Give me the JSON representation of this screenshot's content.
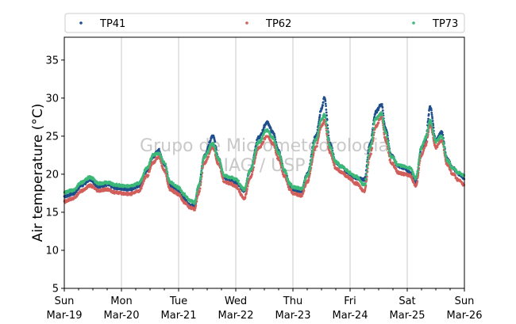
{
  "chart_data": {
    "type": "scatter",
    "title": "",
    "xlabel": "",
    "ylabel": "Air temperature (°C)",
    "ylim": [
      5,
      38
    ],
    "xlim": [
      0,
      7
    ],
    "grid": "vertical",
    "legend_placement": "top, above plot",
    "watermark": [
      "Grupo de Micrometeorologia",
      "IAG / USP"
    ],
    "yticks": [
      "5",
      "10",
      "15",
      "20",
      "25",
      "30",
      "35"
    ],
    "xticks": [
      {
        "day": "Sun",
        "date": "Mar-19"
      },
      {
        "day": "Mon",
        "date": "Mar-20"
      },
      {
        "day": "Tue",
        "date": "Mar-21"
      },
      {
        "day": "Wed",
        "date": "Mar-22"
      },
      {
        "day": "Thu",
        "date": "Mar-23"
      },
      {
        "day": "Fri",
        "date": "Mar-24"
      },
      {
        "day": "Sat",
        "date": "Mar-25"
      },
      {
        "day": "Sun",
        "date": "Mar-26"
      }
    ],
    "series": [
      {
        "name": "TP41",
        "color": "#1f4e8c",
        "points": [
          [
            0.0,
            17.1
          ],
          [
            0.15,
            17.4
          ],
          [
            0.3,
            18.5
          ],
          [
            0.45,
            19.3
          ],
          [
            0.6,
            18.4
          ],
          [
            0.75,
            18.6
          ],
          [
            0.9,
            18.2
          ],
          [
            1.0,
            18.1
          ],
          [
            1.15,
            18.0
          ],
          [
            1.3,
            18.4
          ],
          [
            1.45,
            20.5
          ],
          [
            1.55,
            22.3
          ],
          [
            1.65,
            23.2
          ],
          [
            1.75,
            21.3
          ],
          [
            1.85,
            18.6
          ],
          [
            1.95,
            18.1
          ],
          [
            2.0,
            17.8
          ],
          [
            2.1,
            16.8
          ],
          [
            2.2,
            15.9
          ],
          [
            2.28,
            15.8
          ],
          [
            2.35,
            18.3
          ],
          [
            2.45,
            22.5
          ],
          [
            2.6,
            25.0
          ],
          [
            2.7,
            22.0
          ],
          [
            2.8,
            19.5
          ],
          [
            2.9,
            19.3
          ],
          [
            3.0,
            18.9
          ],
          [
            3.15,
            17.8
          ],
          [
            3.25,
            20.5
          ],
          [
            3.4,
            24.8
          ],
          [
            3.55,
            26.8
          ],
          [
            3.65,
            25.5
          ],
          [
            3.75,
            23.0
          ],
          [
            3.85,
            20.5
          ],
          [
            3.95,
            18.5
          ],
          [
            4.0,
            18.0
          ],
          [
            4.15,
            17.8
          ],
          [
            4.25,
            20.0
          ],
          [
            4.4,
            25.0
          ],
          [
            4.5,
            28.5
          ],
          [
            4.55,
            30.0
          ],
          [
            4.65,
            24.0
          ],
          [
            4.75,
            21.5
          ],
          [
            4.85,
            21.0
          ],
          [
            4.95,
            20.3
          ],
          [
            5.0,
            20.0
          ],
          [
            5.1,
            19.5
          ],
          [
            5.25,
            19.3
          ],
          [
            5.35,
            24.0
          ],
          [
            5.45,
            28.2
          ],
          [
            5.55,
            29.2
          ],
          [
            5.62,
            26.0
          ],
          [
            5.72,
            22.5
          ],
          [
            5.85,
            21.0
          ],
          [
            5.95,
            20.8
          ],
          [
            6.05,
            20.2
          ],
          [
            6.15,
            18.8
          ],
          [
            6.25,
            23.5
          ],
          [
            6.32,
            24.5
          ],
          [
            6.4,
            28.8
          ],
          [
            6.5,
            24.5
          ],
          [
            6.6,
            25.5
          ],
          [
            6.7,
            22.0
          ],
          [
            6.8,
            20.8
          ],
          [
            6.9,
            20.0
          ],
          [
            7.0,
            19.5
          ]
        ]
      },
      {
        "name": "TP62",
        "color": "#d15f5b",
        "points": [
          [
            0.0,
            16.4
          ],
          [
            0.15,
            16.8
          ],
          [
            0.3,
            17.8
          ],
          [
            0.45,
            18.5
          ],
          [
            0.6,
            17.8
          ],
          [
            0.75,
            18.0
          ],
          [
            0.9,
            17.6
          ],
          [
            1.0,
            17.5
          ],
          [
            1.15,
            17.4
          ],
          [
            1.3,
            17.8
          ],
          [
            1.45,
            19.8
          ],
          [
            1.55,
            21.5
          ],
          [
            1.65,
            22.3
          ],
          [
            1.75,
            20.5
          ],
          [
            1.85,
            18.0
          ],
          [
            1.95,
            17.6
          ],
          [
            2.0,
            17.3
          ],
          [
            2.1,
            16.3
          ],
          [
            2.2,
            15.6
          ],
          [
            2.28,
            15.4
          ],
          [
            2.35,
            17.5
          ],
          [
            2.45,
            21.5
          ],
          [
            2.6,
            23.5
          ],
          [
            2.7,
            21.3
          ],
          [
            2.8,
            19.0
          ],
          [
            2.9,
            18.8
          ],
          [
            3.0,
            18.4
          ],
          [
            3.15,
            16.8
          ],
          [
            3.25,
            19.5
          ],
          [
            3.4,
            23.5
          ],
          [
            3.55,
            25.0
          ],
          [
            3.65,
            24.0
          ],
          [
            3.75,
            22.0
          ],
          [
            3.85,
            19.8
          ],
          [
            3.95,
            18.0
          ],
          [
            4.0,
            17.5
          ],
          [
            4.15,
            17.2
          ],
          [
            4.25,
            19.0
          ],
          [
            4.4,
            23.5
          ],
          [
            4.5,
            26.3
          ],
          [
            4.55,
            27.0
          ],
          [
            4.65,
            22.8
          ],
          [
            4.75,
            20.8
          ],
          [
            4.85,
            20.3
          ],
          [
            4.95,
            19.7
          ],
          [
            5.0,
            19.4
          ],
          [
            5.1,
            18.8
          ],
          [
            5.25,
            17.8
          ],
          [
            5.35,
            22.5
          ],
          [
            5.45,
            26.3
          ],
          [
            5.55,
            27.5
          ],
          [
            5.62,
            24.5
          ],
          [
            5.72,
            21.5
          ],
          [
            5.85,
            20.2
          ],
          [
            5.95,
            20.0
          ],
          [
            6.05,
            19.8
          ],
          [
            6.15,
            18.5
          ],
          [
            6.25,
            22.5
          ],
          [
            6.32,
            23.8
          ],
          [
            6.4,
            26.5
          ],
          [
            6.5,
            23.5
          ],
          [
            6.6,
            24.5
          ],
          [
            6.7,
            21.2
          ],
          [
            6.8,
            20.0
          ],
          [
            6.9,
            19.2
          ],
          [
            7.0,
            18.6
          ]
        ]
      },
      {
        "name": "TP73",
        "color": "#3cb878",
        "points": [
          [
            0.0,
            17.6
          ],
          [
            0.15,
            17.9
          ],
          [
            0.3,
            18.9
          ],
          [
            0.45,
            19.6
          ],
          [
            0.6,
            18.8
          ],
          [
            0.75,
            18.9
          ],
          [
            0.9,
            18.6
          ],
          [
            1.0,
            18.5
          ],
          [
            1.15,
            18.4
          ],
          [
            1.3,
            18.8
          ],
          [
            1.45,
            20.8
          ],
          [
            1.55,
            22.5
          ],
          [
            1.65,
            22.8
          ],
          [
            1.75,
            21.5
          ],
          [
            1.85,
            19.0
          ],
          [
            1.95,
            18.5
          ],
          [
            2.0,
            18.2
          ],
          [
            2.1,
            17.3
          ],
          [
            2.2,
            16.5
          ],
          [
            2.28,
            16.3
          ],
          [
            2.35,
            18.5
          ],
          [
            2.45,
            22.3
          ],
          [
            2.6,
            24.0
          ],
          [
            2.7,
            22.0
          ],
          [
            2.8,
            19.8
          ],
          [
            2.9,
            19.6
          ],
          [
            3.0,
            19.3
          ],
          [
            3.15,
            18.0
          ],
          [
            3.25,
            20.5
          ],
          [
            3.4,
            24.2
          ],
          [
            3.55,
            25.8
          ],
          [
            3.65,
            24.8
          ],
          [
            3.75,
            22.8
          ],
          [
            3.85,
            20.5
          ],
          [
            3.95,
            18.7
          ],
          [
            4.0,
            18.3
          ],
          [
            4.15,
            18.1
          ],
          [
            4.25,
            19.8
          ],
          [
            4.4,
            24.5
          ],
          [
            4.5,
            27.2
          ],
          [
            4.55,
            27.8
          ],
          [
            4.65,
            23.6
          ],
          [
            4.75,
            21.6
          ],
          [
            4.85,
            21.0
          ],
          [
            4.95,
            20.5
          ],
          [
            5.0,
            20.2
          ],
          [
            5.1,
            19.7
          ],
          [
            5.25,
            18.6
          ],
          [
            5.35,
            23.5
          ],
          [
            5.45,
            27.3
          ],
          [
            5.55,
            28.0
          ],
          [
            5.62,
            25.5
          ],
          [
            5.72,
            22.3
          ],
          [
            5.85,
            21.2
          ],
          [
            5.95,
            21.0
          ],
          [
            6.05,
            20.8
          ],
          [
            6.15,
            19.5
          ],
          [
            6.25,
            23.5
          ],
          [
            6.32,
            24.8
          ],
          [
            6.4,
            27.0
          ],
          [
            6.5,
            24.3
          ],
          [
            6.6,
            25.0
          ],
          [
            6.7,
            21.8
          ],
          [
            6.8,
            20.8
          ],
          [
            6.9,
            20.2
          ],
          [
            7.0,
            19.8
          ]
        ]
      }
    ]
  }
}
